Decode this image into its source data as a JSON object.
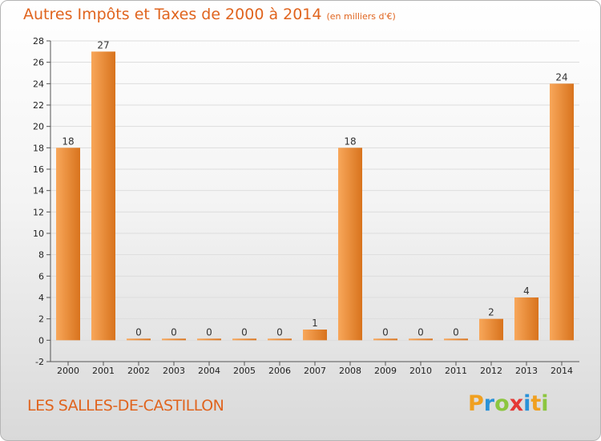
{
  "header": {
    "title": "Autres Impôts et Taxes de 2000 à 2014",
    "subtitle": "(en milliers d'€)"
  },
  "footer": {
    "place": "LES SALLES-DE-CASTILLON",
    "logo_letters": [
      "P",
      "r",
      "o",
      "x",
      "i",
      "t",
      "i"
    ]
  },
  "colors": {
    "title": "#e0641e",
    "bar_light": "#f8a75a",
    "bar_dark": "#d8731d",
    "grid": "#dddddd"
  },
  "chart_data": {
    "type": "bar",
    "title": "Autres Impôts et Taxes de 2000 à 2014",
    "subtitle": "(en milliers d'€)",
    "xlabel": "",
    "ylabel": "",
    "categories": [
      "2000",
      "2001",
      "2002",
      "2003",
      "2004",
      "2005",
      "2006",
      "2007",
      "2008",
      "2009",
      "2010",
      "2011",
      "2012",
      "2013",
      "2014"
    ],
    "values": [
      18,
      27,
      0,
      0,
      0,
      0,
      0,
      1,
      18,
      0,
      0,
      0,
      2,
      4,
      24
    ],
    "data_labels": [
      "18",
      "27",
      "0",
      "0",
      "0",
      "0",
      "0",
      "1",
      "18",
      "0",
      "0",
      "0",
      "2",
      "4",
      "24"
    ],
    "ylim": [
      -2,
      28
    ],
    "yticks": [
      -2,
      0,
      2,
      4,
      6,
      8,
      10,
      12,
      14,
      16,
      18,
      20,
      22,
      24,
      26,
      28
    ],
    "grid": true
  }
}
